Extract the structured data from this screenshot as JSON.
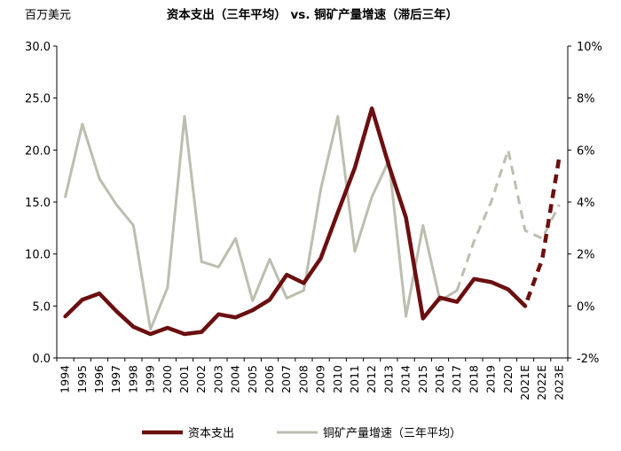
{
  "chart_data": {
    "type": "line",
    "title": "资本支出（三年平均） vs. 铜矿产量增速（滞后三年）",
    "left_unit": "百万美元",
    "categories": [
      "1994",
      "1995",
      "1996",
      "1997",
      "1998",
      "1999",
      "2000",
      "2001",
      "2002",
      "2003",
      "2004",
      "2005",
      "2006",
      "2007",
      "2008",
      "2009",
      "2010",
      "2011",
      "2012",
      "2013",
      "2014",
      "2015",
      "2016",
      "2017",
      "2018",
      "2019",
      "2020",
      "2021E",
      "2022E",
      "2023E"
    ],
    "left_axis": {
      "min": 0,
      "max": 30,
      "ticks": [
        "0.0",
        "5.0",
        "10.0",
        "15.0",
        "20.0",
        "25.0",
        "30.0"
      ],
      "tick_values": [
        0,
        5,
        10,
        15,
        20,
        25,
        30
      ]
    },
    "right_axis": {
      "min": -2,
      "max": 10,
      "ticks": [
        "-2%",
        "0%",
        "2%",
        "4%",
        "6%",
        "8%",
        "10%"
      ],
      "tick_values": [
        -2,
        0,
        2,
        4,
        6,
        8,
        10
      ]
    },
    "series": [
      {
        "name": "资本支出",
        "axis": "left",
        "color": "#6b0f10",
        "values": [
          4.0,
          5.6,
          6.2,
          4.5,
          3.0,
          2.3,
          2.9,
          2.3,
          2.5,
          4.2,
          3.9,
          4.6,
          5.6,
          8.0,
          7.2,
          9.6,
          14.0,
          18.3,
          24.0,
          18.5,
          13.5,
          3.8,
          5.8,
          5.4,
          7.6,
          7.3,
          6.6,
          5.0,
          null,
          null
        ],
        "projection": [
          null,
          null,
          null,
          null,
          null,
          null,
          null,
          null,
          null,
          null,
          null,
          null,
          null,
          null,
          null,
          null,
          null,
          null,
          null,
          null,
          null,
          null,
          null,
          null,
          null,
          null,
          6.6,
          5.0,
          9.5,
          19.3
        ],
        "dash_from": "2020"
      },
      {
        "name": "铜矿产量增速（三年平均）",
        "axis": "right",
        "color": "#bdbdb0",
        "values": [
          4.2,
          7.0,
          4.9,
          3.9,
          3.1,
          -0.9,
          0.7,
          7.3,
          1.7,
          1.5,
          2.6,
          0.2,
          1.8,
          0.3,
          0.6,
          4.5,
          7.3,
          2.1,
          4.2,
          5.6,
          -0.4,
          3.1,
          0.2,
          0.6,
          null,
          null,
          null,
          null,
          null,
          null
        ],
        "projection": [
          null,
          null,
          null,
          null,
          null,
          null,
          null,
          null,
          null,
          null,
          null,
          null,
          null,
          null,
          null,
          null,
          null,
          null,
          null,
          null,
          null,
          null,
          null,
          0.6,
          2.5,
          4.0,
          6.0,
          2.9,
          2.6,
          3.9
        ],
        "dash_from": "2017"
      }
    ]
  },
  "legend": {
    "items": [
      {
        "label": "资本支出",
        "color": "#6b0f10"
      },
      {
        "label": "铜矿产量增速（三年平均）",
        "color": "#bdbdb0"
      }
    ]
  }
}
